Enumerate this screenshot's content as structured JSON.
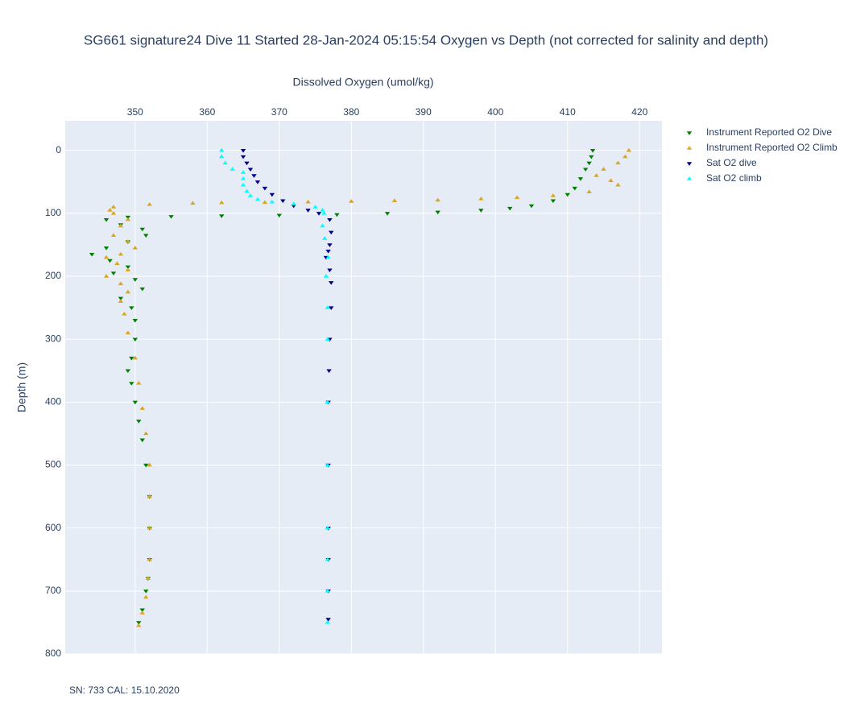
{
  "chart_data": {
    "type": "scatter",
    "title": "SG661 signature24 Dive 11 Started 28-Jan-2024 05:15:54  Oxygen vs Depth (not corrected for salinity and depth)",
    "x_label": "Dissolved Oxygen (umol/kg)",
    "y_label": "Depth (m)",
    "annotation": "SN: 733  CAL: 15.10.2020",
    "xlim": [
      340.3,
      423.1
    ],
    "ylim": [
      800,
      -47
    ],
    "xticks": [
      350,
      360,
      370,
      380,
      390,
      400,
      410,
      420
    ],
    "yticks": [
      0,
      100,
      200,
      300,
      400,
      500,
      600,
      700,
      800
    ],
    "grid": true,
    "legend": "right",
    "series": [
      {
        "name": "Instrument Reported O2 Dive",
        "color": "#008000",
        "symbol": "triangle-down",
        "x": [
          413.5,
          413.3,
          413,
          412.5,
          411.8,
          411,
          410,
          408,
          405,
          402,
          398,
          392,
          385,
          378,
          370,
          362,
          355,
          349,
          346,
          348,
          351,
          351.5,
          349,
          346,
          344,
          346.5,
          349,
          347,
          350,
          351,
          348,
          349.5,
          350,
          350,
          349.5,
          349,
          349.5,
          350,
          350.5,
          351,
          351.5,
          352,
          352,
          352,
          351.8,
          351.5,
          351,
          350.5
        ],
        "values": [
          0,
          10,
          20,
          30,
          45,
          60,
          70,
          80,
          88,
          92,
          95,
          98,
          100,
          102,
          103,
          104,
          105,
          106,
          110,
          118,
          125,
          135,
          145,
          155,
          165,
          175,
          185,
          195,
          205,
          220,
          235,
          250,
          270,
          300,
          330,
          350,
          370,
          400,
          430,
          460,
          500,
          550,
          600,
          650,
          680,
          700,
          730,
          750
        ]
      },
      {
        "name": "Instrument Reported O2 Climb",
        "color": "#daa520",
        "symbol": "triangle-up",
        "x": [
          418.5,
          418,
          417,
          415,
          414,
          416,
          417,
          413,
          408,
          403,
          398,
          392,
          386,
          380,
          374,
          368,
          362,
          358,
          352,
          347,
          346.5,
          347,
          349,
          348,
          347,
          349,
          350,
          348,
          346,
          347.5,
          349,
          346,
          348,
          349,
          348,
          348.5,
          349,
          350,
          350.5,
          351,
          351.5,
          352,
          352,
          352,
          352,
          351.8,
          351.5,
          351,
          350.5
        ],
        "values": [
          0,
          10,
          20,
          30,
          40,
          48,
          55,
          66,
          72,
          75,
          77,
          79,
          80,
          81,
          82,
          82.5,
          83,
          84,
          86,
          90,
          95,
          100,
          110,
          120,
          135,
          145,
          155,
          165,
          170,
          180,
          190,
          200,
          212,
          225,
          240,
          260,
          290,
          330,
          370,
          410,
          450,
          500,
          550,
          600,
          650,
          680,
          710,
          735,
          755
        ]
      },
      {
        "name": "Sat O2 dive",
        "color": "#00008b",
        "symbol": "triangle-down",
        "x": [
          365,
          365,
          365.5,
          366,
          366.5,
          367,
          368,
          369,
          370.5,
          372,
          374,
          375.5,
          377,
          377.2,
          377,
          376.8,
          376.5,
          377,
          377.2,
          377.2,
          377,
          376.9,
          376.8,
          376.8,
          376.8,
          376.8,
          376.8,
          376.8
        ],
        "values": [
          0,
          10,
          20,
          30,
          40,
          50,
          60,
          70,
          80,
          88,
          95,
          100,
          110,
          130,
          150,
          160,
          170,
          190,
          210,
          250,
          300,
          350,
          400,
          500,
          600,
          650,
          700,
          745
        ]
      },
      {
        "name": "Sat O2 climb",
        "color": "#00ffff",
        "symbol": "triangle-up",
        "x": [
          362,
          362,
          362.5,
          363.5,
          365,
          365,
          365,
          365.5,
          366,
          367,
          369,
          372,
          375,
          376,
          376.2,
          376,
          376.3,
          376.8,
          376.5,
          376.7,
          376.7,
          376.7,
          376.7,
          376.7,
          376.7,
          376.7,
          376.7
        ],
        "values": [
          0,
          10,
          20,
          30,
          35,
          45,
          55,
          65,
          72,
          78,
          82,
          85,
          90,
          95,
          100,
          120,
          140,
          170,
          200,
          250,
          300,
          400,
          500,
          600,
          650,
          700,
          750
        ]
      }
    ]
  }
}
